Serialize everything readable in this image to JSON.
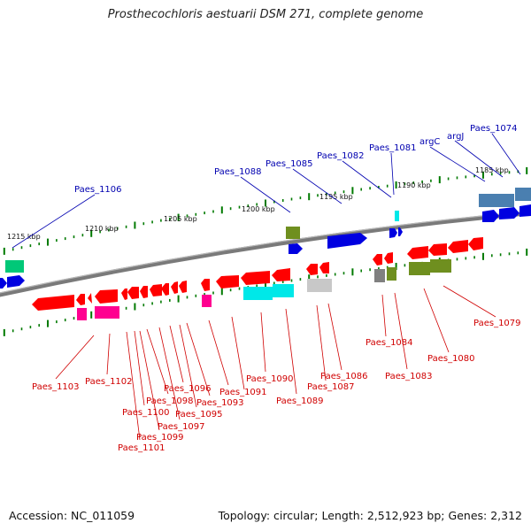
{
  "title": "Prosthecochloris aestuarii DSM 271, complete genome",
  "footer": {
    "accession": "Accession: NC_011059",
    "topology": "Topology: circular;",
    "length": "Length: 2,512,923 bp;",
    "genes": "Genes: 2,312"
  },
  "kbp_marks": [
    "1215 kbp",
    "1210 kbp",
    "1205 kbp",
    "1200 kbp",
    "1195 kbp",
    "1190 kbp",
    "1185 kbp"
  ],
  "labels_above": [
    "Paes_1106",
    "Paes_1088",
    "Paes_1085",
    "Paes_1082",
    "Paes_1081",
    "argC",
    "argJ",
    "Paes_1074"
  ],
  "labels_below": [
    "Paes_1103",
    "Paes_1102",
    "Paes_1100",
    "Paes_1101",
    "Paes_1099",
    "Paes_1098",
    "Paes_1097",
    "Paes_1096",
    "Paes_1095",
    "Paes_1093",
    "Paes_1091",
    "Paes_1090",
    "Paes_1089",
    "Paes_1087",
    "Paes_1086",
    "Paes_1084",
    "Paes_1083",
    "Paes_1080",
    "Paes_1079"
  ],
  "colors": {
    "backbone": "#808080",
    "tick": "#007a00",
    "label_above": "#0000b0",
    "label_below": "#d00000",
    "gene_blue": "#0000e0",
    "gene_red": "#ff0000",
    "gene_magenta": "#ff0090",
    "gene_cyan": "#00e8e8",
    "gene_olive": "#6f8f1f",
    "gene_green": "#00c878",
    "gene_steel": "#4a7fb0",
    "gene_gray": "#808080",
    "gene_silver": "#c8c8c8"
  }
}
